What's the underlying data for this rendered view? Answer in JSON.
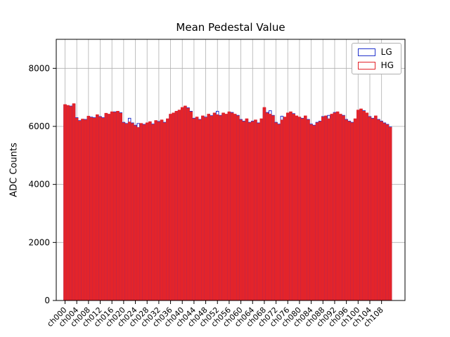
{
  "figure": {
    "title": "Mean Pedestal Value",
    "ylabel": "ADC Counts"
  },
  "chart_data": {
    "type": "bar",
    "title": "Mean Pedestal Value",
    "xlabel": "",
    "ylabel": "ADC Counts",
    "ylim": [
      0,
      9000
    ],
    "yticks": [
      0,
      2000,
      4000,
      6000,
      8000
    ],
    "tick_step": 4,
    "grid": true,
    "legend_position": "upper right",
    "colors": {
      "grid": "#b0b0b0",
      "axis": "#000000",
      "background": "#ffffff"
    },
    "categories": [
      "ch000",
      "ch001",
      "ch002",
      "ch003",
      "ch004",
      "ch005",
      "ch006",
      "ch007",
      "ch008",
      "ch009",
      "ch010",
      "ch011",
      "ch012",
      "ch013",
      "ch014",
      "ch015",
      "ch016",
      "ch017",
      "ch018",
      "ch019",
      "ch020",
      "ch021",
      "ch022",
      "ch023",
      "ch024",
      "ch025",
      "ch026",
      "ch027",
      "ch028",
      "ch029",
      "ch030",
      "ch031",
      "ch032",
      "ch033",
      "ch034",
      "ch035",
      "ch036",
      "ch037",
      "ch038",
      "ch039",
      "ch040",
      "ch041",
      "ch042",
      "ch043",
      "ch044",
      "ch045",
      "ch046",
      "ch047",
      "ch048",
      "ch049",
      "ch050",
      "ch051",
      "ch052",
      "ch053",
      "ch054",
      "ch055",
      "ch056",
      "ch057",
      "ch058",
      "ch059",
      "ch060",
      "ch061",
      "ch062",
      "ch063",
      "ch064",
      "ch065",
      "ch066",
      "ch067",
      "ch068",
      "ch069",
      "ch070",
      "ch071",
      "ch072",
      "ch073",
      "ch074",
      "ch075",
      "ch076",
      "ch077",
      "ch078",
      "ch079",
      "ch080",
      "ch081",
      "ch082",
      "ch083",
      "ch084",
      "ch085",
      "ch086",
      "ch087",
      "ch088",
      "ch089",
      "ch090",
      "ch091",
      "ch092",
      "ch093",
      "ch094",
      "ch095",
      "ch096",
      "ch097",
      "ch098",
      "ch099",
      "ch100",
      "ch101",
      "ch102",
      "ch103",
      "ch104",
      "ch105",
      "ch106",
      "ch107",
      "ch108",
      "ch109",
      "ch110",
      "ch111"
    ],
    "series": [
      {
        "name": "LG",
        "color": "#2233cc",
        "values": [
          6740,
          6700,
          6700,
          6760,
          6300,
          6200,
          6230,
          6240,
          6330,
          6320,
          6300,
          6380,
          6340,
          6300,
          6430,
          6400,
          6480,
          6500,
          6500,
          6470,
          6140,
          6100,
          6280,
          6120,
          6040,
          6100,
          6080,
          6070,
          6100,
          6140,
          6080,
          6180,
          6170,
          6200,
          6140,
          6240,
          6400,
          6440,
          6500,
          6540,
          6630,
          6680,
          6640,
          6520,
          6280,
          6300,
          6240,
          6340,
          6320,
          6400,
          6370,
          6440,
          6520,
          6380,
          6440,
          6400,
          6480,
          6480,
          6400,
          6380,
          6240,
          6180,
          6240,
          6140,
          6180,
          6200,
          6120,
          6240,
          6630,
          6480,
          6540,
          6380,
          6140,
          6080,
          6350,
          6300,
          6440,
          6480,
          6440,
          6340,
          6300,
          6280,
          6340,
          6240,
          6080,
          6040,
          6140,
          6180,
          6340,
          6340,
          6380,
          6400,
          6480,
          6480,
          6400,
          6380,
          6240,
          6180,
          6140,
          6240,
          6540,
          6580,
          6540,
          6440,
          6340,
          6280,
          6340,
          6240,
          6180,
          6120,
          6070,
          5980
        ]
      },
      {
        "name": "HG",
        "color": "#e3242b",
        "values": [
          6750,
          6720,
          6680,
          6780,
          6280,
          6180,
          6250,
          6220,
          6350,
          6300,
          6280,
          6400,
          6320,
          6280,
          6450,
          6420,
          6500,
          6480,
          6520,
          6450,
          6120,
          6080,
          6150,
          6100,
          6020,
          5960,
          6100,
          6050,
          6120,
          6160,
          6060,
          6200,
          6150,
          6220,
          6120,
          6260,
          6420,
          6460,
          6520,
          6560,
          6650,
          6700,
          6620,
          6500,
          6260,
          6320,
          6220,
          6360,
          6300,
          6420,
          6350,
          6460,
          6400,
          6360,
          6460,
          6420,
          6500,
          6460,
          6420,
          6360,
          6220,
          6160,
          6260,
          6120,
          6160,
          6220,
          6100,
          6260,
          6650,
          6460,
          6420,
          6360,
          6120,
          6060,
          6220,
          6320,
          6460,
          6500,
          6420,
          6360,
          6320,
          6260,
          6360,
          6220,
          6060,
          6020,
          6120,
          6160,
          6320,
          6360,
          6260,
          6420,
          6460,
          6500,
          6420,
          6360,
          6220,
          6160,
          6120,
          6260,
          6560,
          6600,
          6520,
          6460,
          6320,
          6260,
          6360,
          6220,
          6160,
          6100,
          6050,
          5960
        ]
      }
    ]
  }
}
